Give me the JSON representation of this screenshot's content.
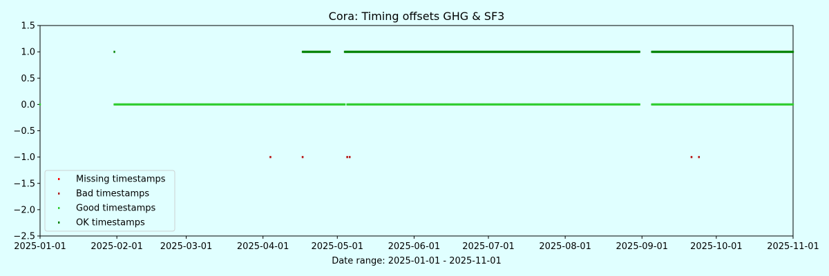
{
  "chart_data": {
    "type": "scatter",
    "title": "Cora: Timing offsets GHG & SF3",
    "xlabel": "Date range: 2025-01-01 - 2025-11-01",
    "ylabel": "",
    "xlim": [
      "2025-01-01",
      "2025-11-01"
    ],
    "ylim": [
      -2.5,
      1.5
    ],
    "x_ticks": [
      "2025-01-01",
      "2025-02-01",
      "2025-03-01",
      "2025-04-01",
      "2025-05-01",
      "2025-06-01",
      "2025-07-01",
      "2025-08-01",
      "2025-09-01",
      "2025-10-01",
      "2025-11-01"
    ],
    "y_ticks": [
      1.5,
      1.0,
      0.5,
      0.0,
      -0.5,
      -1.0,
      -1.5,
      -2.0,
      -2.5
    ],
    "y_tick_labels": [
      "1.5",
      "1.0",
      "0.5",
      "0.0",
      "−0.5",
      "−1.0",
      "−1.5",
      "−2.0",
      "−2.5"
    ],
    "grid": false,
    "legend_position": "lower-left",
    "series": [
      {
        "name": "Missing timestamps",
        "color": "#ff0000",
        "y": -1.0,
        "points": [
          "2025-04-04",
          "2025-04-17",
          "2025-05-05",
          "2025-05-06",
          "2025-09-21",
          "2025-09-24"
        ]
      },
      {
        "name": "Bad timestamps",
        "color": "#b22222",
        "y": -1.0,
        "points": [
          "2025-04-04",
          "2025-04-17",
          "2025-05-05",
          "2025-05-06",
          "2025-09-21",
          "2025-09-24"
        ]
      },
      {
        "name": "Good timestamps",
        "color": "#32cd32",
        "y": 0.0,
        "points": [
          "2025-01-01"
        ],
        "ranges": [
          [
            "2025-01-31",
            "2025-05-04"
          ],
          [
            "2025-05-05",
            "2025-08-31"
          ],
          [
            "2025-09-05",
            "2025-11-01"
          ]
        ]
      },
      {
        "name": "OK timestamps",
        "color": "#008000",
        "y": 1.0,
        "points": [
          "2025-01-31"
        ],
        "ranges": [
          [
            "2025-04-17",
            "2025-04-28"
          ],
          [
            "2025-05-04",
            "2025-08-31"
          ],
          [
            "2025-09-05",
            "2025-11-01"
          ]
        ]
      }
    ]
  }
}
